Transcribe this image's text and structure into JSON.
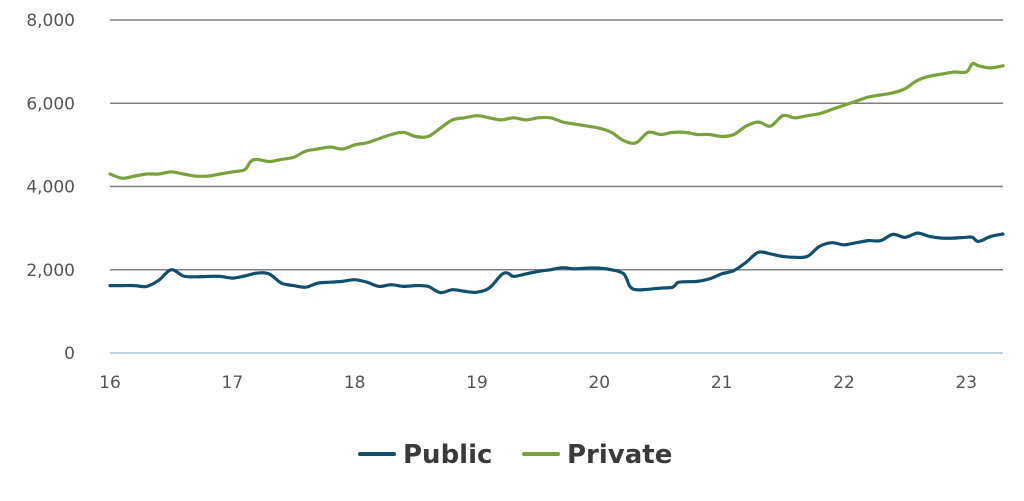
{
  "chart_data": {
    "type": "line",
    "title": "",
    "xlabel": "",
    "ylabel": "",
    "xlim": [
      16,
      23.3
    ],
    "ylim": [
      0,
      8000
    ],
    "grid": true,
    "legend_position": "bottom",
    "x_ticks": [
      16,
      17,
      18,
      19,
      20,
      21,
      22,
      23
    ],
    "x_tick_labels": [
      "16",
      "17",
      "18",
      "19",
      "20",
      "21",
      "22",
      "23"
    ],
    "y_ticks": [
      0,
      2000,
      4000,
      6000,
      8000
    ],
    "y_tick_labels": [
      "0",
      "2,000",
      "4,000",
      "6,000",
      "8,000"
    ],
    "series": [
      {
        "name": "Public",
        "color": "#134e6c",
        "x": [
          16.0,
          16.1,
          16.2,
          16.3,
          16.4,
          16.5,
          16.6,
          16.7,
          16.8,
          16.9,
          17.0,
          17.1,
          17.2,
          17.3,
          17.4,
          17.5,
          17.6,
          17.7,
          17.8,
          17.9,
          18.0,
          18.1,
          18.2,
          18.3,
          18.4,
          18.5,
          18.6,
          18.7,
          18.8,
          18.9,
          19.0,
          19.1,
          19.2,
          19.25,
          19.3,
          19.4,
          19.5,
          19.6,
          19.7,
          19.8,
          19.9,
          20.0,
          20.1,
          20.2,
          20.25,
          20.3,
          20.4,
          20.5,
          20.6,
          20.65,
          20.8,
          20.9,
          21.0,
          21.1,
          21.2,
          21.3,
          21.4,
          21.5,
          21.6,
          21.7,
          21.8,
          21.9,
          22.0,
          22.1,
          22.2,
          22.3,
          22.4,
          22.5,
          22.6,
          22.7,
          22.8,
          22.9,
          23.0,
          23.05,
          23.1,
          23.2,
          23.3
        ],
        "values": [
          1620,
          1620,
          1620,
          1600,
          1750,
          2000,
          1850,
          1830,
          1840,
          1840,
          1800,
          1850,
          1920,
          1900,
          1680,
          1620,
          1580,
          1680,
          1700,
          1720,
          1760,
          1700,
          1600,
          1640,
          1600,
          1620,
          1600,
          1450,
          1520,
          1480,
          1460,
          1560,
          1880,
          1920,
          1840,
          1900,
          1960,
          2000,
          2050,
          2020,
          2040,
          2040,
          2000,
          1900,
          1600,
          1520,
          1530,
          1560,
          1580,
          1700,
          1720,
          1780,
          1900,
          1980,
          2180,
          2420,
          2380,
          2320,
          2300,
          2320,
          2560,
          2650,
          2600,
          2650,
          2700,
          2700,
          2850,
          2780,
          2880,
          2800,
          2760,
          2760,
          2780,
          2780,
          2680,
          2800,
          2860
        ]
      },
      {
        "name": "Private",
        "color": "#7aa23c",
        "x": [
          16.0,
          16.1,
          16.2,
          16.3,
          16.4,
          16.5,
          16.6,
          16.7,
          16.8,
          16.9,
          17.0,
          17.1,
          17.15,
          17.2,
          17.3,
          17.4,
          17.5,
          17.6,
          17.7,
          17.8,
          17.9,
          18.0,
          18.1,
          18.2,
          18.3,
          18.4,
          18.5,
          18.6,
          18.7,
          18.8,
          18.9,
          19.0,
          19.1,
          19.2,
          19.3,
          19.4,
          19.5,
          19.6,
          19.7,
          19.8,
          19.9,
          20.0,
          20.1,
          20.2,
          20.3,
          20.4,
          20.5,
          20.6,
          20.7,
          20.8,
          20.9,
          21.0,
          21.1,
          21.2,
          21.3,
          21.4,
          21.5,
          21.6,
          21.7,
          21.8,
          21.9,
          22.0,
          22.1,
          22.2,
          22.3,
          22.4,
          22.5,
          22.6,
          22.7,
          22.8,
          22.9,
          23.0,
          23.05,
          23.1,
          23.2,
          23.3
        ],
        "values": [
          4300,
          4200,
          4250,
          4300,
          4300,
          4350,
          4300,
          4250,
          4250,
          4300,
          4350,
          4400,
          4600,
          4650,
          4600,
          4650,
          4700,
          4850,
          4900,
          4950,
          4900,
          5000,
          5050,
          5150,
          5250,
          5300,
          5200,
          5200,
          5400,
          5600,
          5650,
          5700,
          5650,
          5600,
          5650,
          5600,
          5650,
          5650,
          5550,
          5500,
          5450,
          5400,
          5300,
          5100,
          5050,
          5300,
          5250,
          5300,
          5300,
          5250,
          5250,
          5200,
          5250,
          5450,
          5550,
          5450,
          5700,
          5650,
          5700,
          5750,
          5850,
          5950,
          6050,
          6150,
          6200,
          6250,
          6350,
          6550,
          6650,
          6700,
          6750,
          6750,
          6950,
          6900,
          6850,
          6900
        ]
      }
    ]
  }
}
